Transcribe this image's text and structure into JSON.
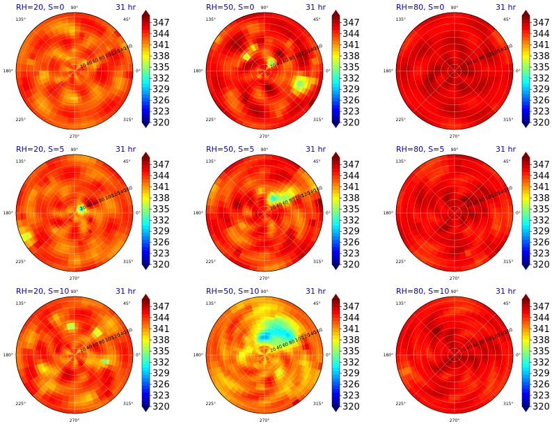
{
  "chart_data": [
    {
      "type": "heatmap",
      "title": "RH=20, S=0",
      "time_label": "31 hr",
      "pattern": "rh20_s0"
    },
    {
      "type": "heatmap",
      "title": "RH=50, S=0",
      "time_label": "31 hr",
      "pattern": "rh50_s0"
    },
    {
      "type": "heatmap",
      "title": "RH=80, S=0",
      "time_label": "31 hr",
      "pattern": "rh80_s0"
    },
    {
      "type": "heatmap",
      "title": "RH=20, S=5",
      "time_label": "31 hr",
      "pattern": "rh20_s5"
    },
    {
      "type": "heatmap",
      "title": "RH=50, S=5",
      "time_label": "31 hr",
      "pattern": "rh50_s5"
    },
    {
      "type": "heatmap",
      "title": "RH=80, S=5",
      "time_label": "31 hr",
      "pattern": "rh80_s5"
    },
    {
      "type": "heatmap",
      "title": "RH=20, S=10",
      "time_label": "31 hr",
      "pattern": "rh20_s10"
    },
    {
      "type": "heatmap",
      "title": "RH=50, S=10",
      "time_label": "31 hr",
      "pattern": "rh50_s10"
    },
    {
      "type": "heatmap",
      "title": "RH=80, S=10",
      "time_label": "31 hr",
      "pattern": "rh80_s10"
    }
  ],
  "axes": {
    "angle_labels": [
      "90°",
      "45°",
      "0°",
      "315°",
      "270°",
      "225°",
      "180°",
      "135°"
    ],
    "radial_labels": [
      "20",
      "40",
      "60",
      "80",
      "100",
      "120",
      "140",
      "160"
    ]
  },
  "colorbar": {
    "ticks": [
      "347",
      "344",
      "341",
      "338",
      "335",
      "332",
      "329",
      "326",
      "323",
      "320"
    ],
    "range": [
      320,
      349
    ],
    "colormap": "jet"
  }
}
